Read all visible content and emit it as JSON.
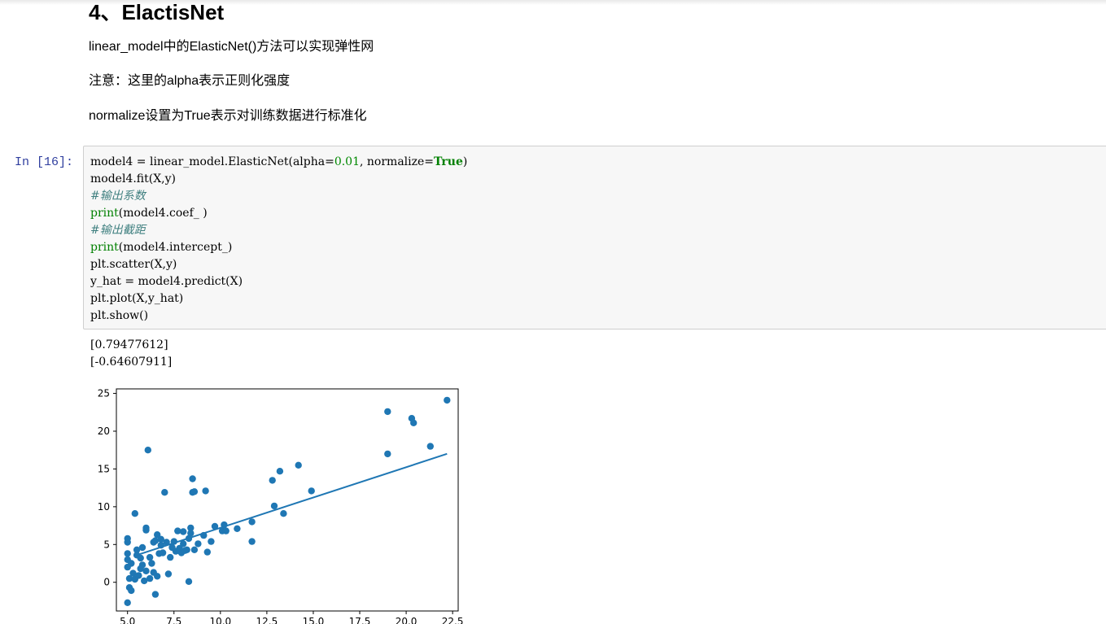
{
  "markdown": {
    "heading": "4、ElactisNet",
    "paragraphs": [
      "linear_model中的ElasticNet()方法可以实现弹性网",
      "注意：这里的alpha表示正则化强度",
      "normalize设置为True表示对训练数据进行标准化"
    ]
  },
  "cell": {
    "prompt": "In  [16]:",
    "code": {
      "line1_a": "model4 = linear_model.ElasticNet(alpha=",
      "line1_num": "0.01",
      "line1_b": ", normalize=",
      "line1_kw": "True",
      "line1_c": ")",
      "line2": "model4.fit(X,y)",
      "line3_comment": "#输出系数",
      "line4_fn": "print",
      "line4_rest": "(model4.coef_ )",
      "line5_comment": "#输出截距",
      "line6_fn": "print",
      "line6_rest": "(model4.intercept_)",
      "line7": "plt.scatter(X,y)",
      "line8": "y_hat = model4.predict(X)",
      "line9": "plt.plot(X,y_hat)",
      "line10": "plt.show()"
    },
    "output_lines": [
      "[0.79477612]",
      "[-0.64607911]"
    ]
  },
  "chart_data": {
    "type": "scatter",
    "title": "",
    "xlabel": "",
    "ylabel": "",
    "xlim": [
      4.4,
      22.8
    ],
    "ylim": [
      -3.8,
      25.6
    ],
    "xticks": [
      5.0,
      7.5,
      10.0,
      12.5,
      15.0,
      17.5,
      20.0,
      22.5
    ],
    "xtick_labels": [
      "5.0",
      "7.5",
      "10.0",
      "12.5",
      "15.0",
      "17.5",
      "20.0",
      "22.5"
    ],
    "yticks": [
      0,
      5,
      10,
      15,
      20,
      25
    ],
    "ytick_labels": [
      "0",
      "5",
      "10",
      "15",
      "20",
      "25"
    ],
    "grid": false,
    "point_color": "#1f77b4",
    "line_color": "#1f77b4",
    "points": [
      [
        5.0,
        -2.7
      ],
      [
        5.1,
        -0.7
      ],
      [
        5.2,
        -1.1
      ],
      [
        5.1,
        0.5
      ],
      [
        5.0,
        2.0
      ],
      [
        5.0,
        3.0
      ],
      [
        5.0,
        3.8
      ],
      [
        5.0,
        5.3
      ],
      [
        5.0,
        5.8
      ],
      [
        5.2,
        2.5
      ],
      [
        5.3,
        1.2
      ],
      [
        5.4,
        0.4
      ],
      [
        5.5,
        3.6
      ],
      [
        5.5,
        4.3
      ],
      [
        5.4,
        9.1
      ],
      [
        5.6,
        0.9
      ],
      [
        5.7,
        1.8
      ],
      [
        5.7,
        3.2
      ],
      [
        5.8,
        2.3
      ],
      [
        5.8,
        4.6
      ],
      [
        5.9,
        0.2
      ],
      [
        6.0,
        1.5
      ],
      [
        6.0,
        6.9
      ],
      [
        6.0,
        7.2
      ],
      [
        6.1,
        17.5
      ],
      [
        6.2,
        0.5
      ],
      [
        6.2,
        3.3
      ],
      [
        6.3,
        2.5
      ],
      [
        6.4,
        1.3
      ],
      [
        6.4,
        5.3
      ],
      [
        6.5,
        -1.6
      ],
      [
        6.5,
        5.5
      ],
      [
        6.6,
        6.3
      ],
      [
        6.6,
        0.8
      ],
      [
        6.7,
        3.8
      ],
      [
        6.8,
        4.9
      ],
      [
        6.8,
        5.7
      ],
      [
        6.9,
        3.9
      ],
      [
        7.0,
        11.9
      ],
      [
        7.1,
        5.3
      ],
      [
        7.2,
        1.1
      ],
      [
        7.3,
        3.3
      ],
      [
        7.4,
        4.6
      ],
      [
        7.5,
        5.4
      ],
      [
        7.6,
        4.1
      ],
      [
        7.7,
        6.8
      ],
      [
        7.8,
        4.5
      ],
      [
        7.9,
        3.9
      ],
      [
        8.0,
        5.1
      ],
      [
        8.0,
        6.7
      ],
      [
        8.1,
        4.2
      ],
      [
        8.2,
        4.3
      ],
      [
        8.3,
        5.8
      ],
      [
        8.3,
        0.1
      ],
      [
        8.4,
        6.5
      ],
      [
        8.4,
        7.2
      ],
      [
        8.5,
        11.9
      ],
      [
        8.5,
        13.7
      ],
      [
        8.6,
        12.0
      ],
      [
        8.6,
        4.3
      ],
      [
        8.8,
        5.1
      ],
      [
        9.1,
        6.2
      ],
      [
        9.2,
        12.1
      ],
      [
        9.3,
        4.0
      ],
      [
        9.5,
        5.4
      ],
      [
        9.7,
        7.4
      ],
      [
        10.1,
        6.8
      ],
      [
        10.2,
        7.6
      ],
      [
        10.3,
        6.8
      ],
      [
        10.9,
        7.1
      ],
      [
        11.7,
        8.0
      ],
      [
        11.7,
        5.4
      ],
      [
        12.8,
        13.5
      ],
      [
        12.9,
        10.1
      ],
      [
        13.2,
        14.7
      ],
      [
        13.4,
        9.1
      ],
      [
        14.2,
        15.5
      ],
      [
        14.9,
        12.1
      ],
      [
        19.0,
        22.6
      ],
      [
        19.0,
        17.0
      ],
      [
        20.3,
        21.7
      ],
      [
        20.4,
        21.1
      ],
      [
        21.3,
        18.0
      ],
      [
        22.2,
        24.1
      ]
    ],
    "line": {
      "x": [
        5.5,
        22.2
      ],
      "y": [
        3.6,
        17.0
      ]
    }
  }
}
